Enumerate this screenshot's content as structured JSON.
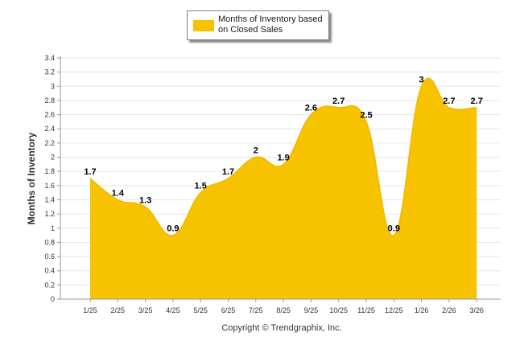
{
  "chart_data": {
    "type": "area",
    "title": "",
    "xlabel": "",
    "ylabel": "Months of Inventory",
    "categories": [
      "1/25",
      "2/25",
      "3/25",
      "4/25",
      "5/25",
      "6/25",
      "7/25",
      "8/25",
      "9/25",
      "10/25",
      "11/25",
      "12/25",
      "1/26",
      "2/26",
      "3/26"
    ],
    "series": [
      {
        "name": "Months of Inventory based on Closed Sales",
        "values": [
          1.7,
          1.4,
          1.3,
          0.9,
          1.5,
          1.7,
          2,
          1.9,
          2.6,
          2.7,
          2.5,
          0.9,
          3,
          2.7,
          2.7
        ],
        "labels": [
          "1.7",
          "1.4",
          "1.3",
          "0.9",
          "1.5",
          "1.7",
          "2",
          "1.9",
          "2.6",
          "2.7",
          "2.5",
          "0.9",
          "3",
          "2.7",
          "2.7"
        ],
        "color": "#f7c200"
      }
    ],
    "ylim": [
      0,
      3.4
    ],
    "yticks": [
      "0",
      "0.2",
      "0.4",
      "0.6",
      "0.8",
      "1",
      "1.2",
      "1.4",
      "1.6",
      "1.8",
      "2",
      "2.2",
      "2.4",
      "2.6",
      "2.8",
      "3",
      "3.2",
      "3.4"
    ],
    "grid": true,
    "legend_position": "top-center"
  },
  "legend": {
    "label_line1": "Months of Inventory based",
    "label_line2": "on Closed Sales"
  },
  "footer": {
    "copyright": "Copyright © Trendgraphix, Inc."
  },
  "colors": {
    "area": "#f7c200",
    "grid": "#e6e6e6",
    "axis": "#999999"
  }
}
